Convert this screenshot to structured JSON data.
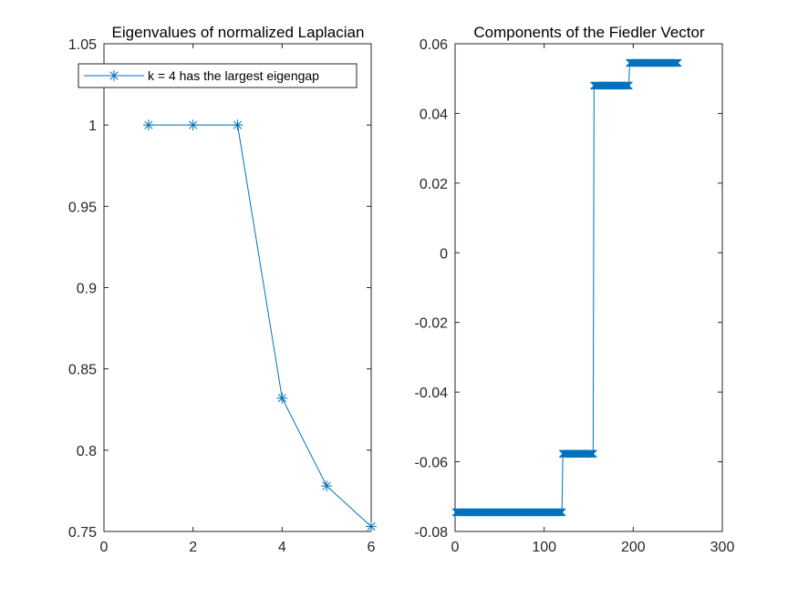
{
  "colors": {
    "series": "#0072BD",
    "axis": "#262626",
    "background": "#ffffff"
  },
  "chart_data": [
    {
      "type": "line",
      "title": "Eigenvalues of normalized Laplacian",
      "xlabel": "",
      "ylabel": "",
      "xlim": [
        0,
        6
      ],
      "ylim": [
        0.75,
        1.05
      ],
      "xticks": [
        0,
        2,
        4,
        6
      ],
      "xtick_labels": [
        "0",
        "2",
        "4",
        "6"
      ],
      "yticks": [
        0.75,
        0.8,
        0.85,
        0.9,
        0.95,
        1,
        1.05
      ],
      "ytick_labels": [
        "0.75",
        "0.8",
        "0.85",
        "0.9",
        "0.95",
        "1",
        "1.05"
      ],
      "grid": false,
      "legend": {
        "location": "top-left",
        "entries": [
          "k = 4 has the largest eigengap"
        ]
      },
      "series": [
        {
          "name": "k = 4 has the largest eigengap",
          "marker": "asterisk",
          "x": [
            1,
            2,
            3,
            4,
            5,
            6
          ],
          "y": [
            1.0,
            1.0,
            1.0,
            0.832,
            0.778,
            0.753
          ]
        }
      ]
    },
    {
      "type": "line",
      "title": "Components of the Fiedler Vector",
      "xlabel": "",
      "ylabel": "",
      "xlim": [
        0,
        300
      ],
      "ylim": [
        -0.08,
        0.06
      ],
      "xticks": [
        0,
        100,
        200,
        300
      ],
      "xtick_labels": [
        "0",
        "100",
        "200",
        "300"
      ],
      "yticks": [
        -0.08,
        -0.06,
        -0.04,
        -0.02,
        0,
        0.02,
        0.04,
        0.06
      ],
      "ytick_labels": [
        "-0.08",
        "-0.06",
        "-0.04",
        "-0.02",
        "0",
        "0.02",
        "0.04",
        "0.06"
      ],
      "grid": false,
      "series": [
        {
          "marker": "x",
          "segments": [
            {
              "x_start": 1,
              "x_end": 120,
              "y": -0.0745
            },
            {
              "x_start": 121,
              "x_end": 155,
              "y": -0.0577
            },
            {
              "x_start": 156,
              "x_end": 195,
              "y": 0.048
            },
            {
              "x_start": 196,
              "x_end": 250,
              "y": 0.0545
            }
          ]
        }
      ]
    }
  ]
}
